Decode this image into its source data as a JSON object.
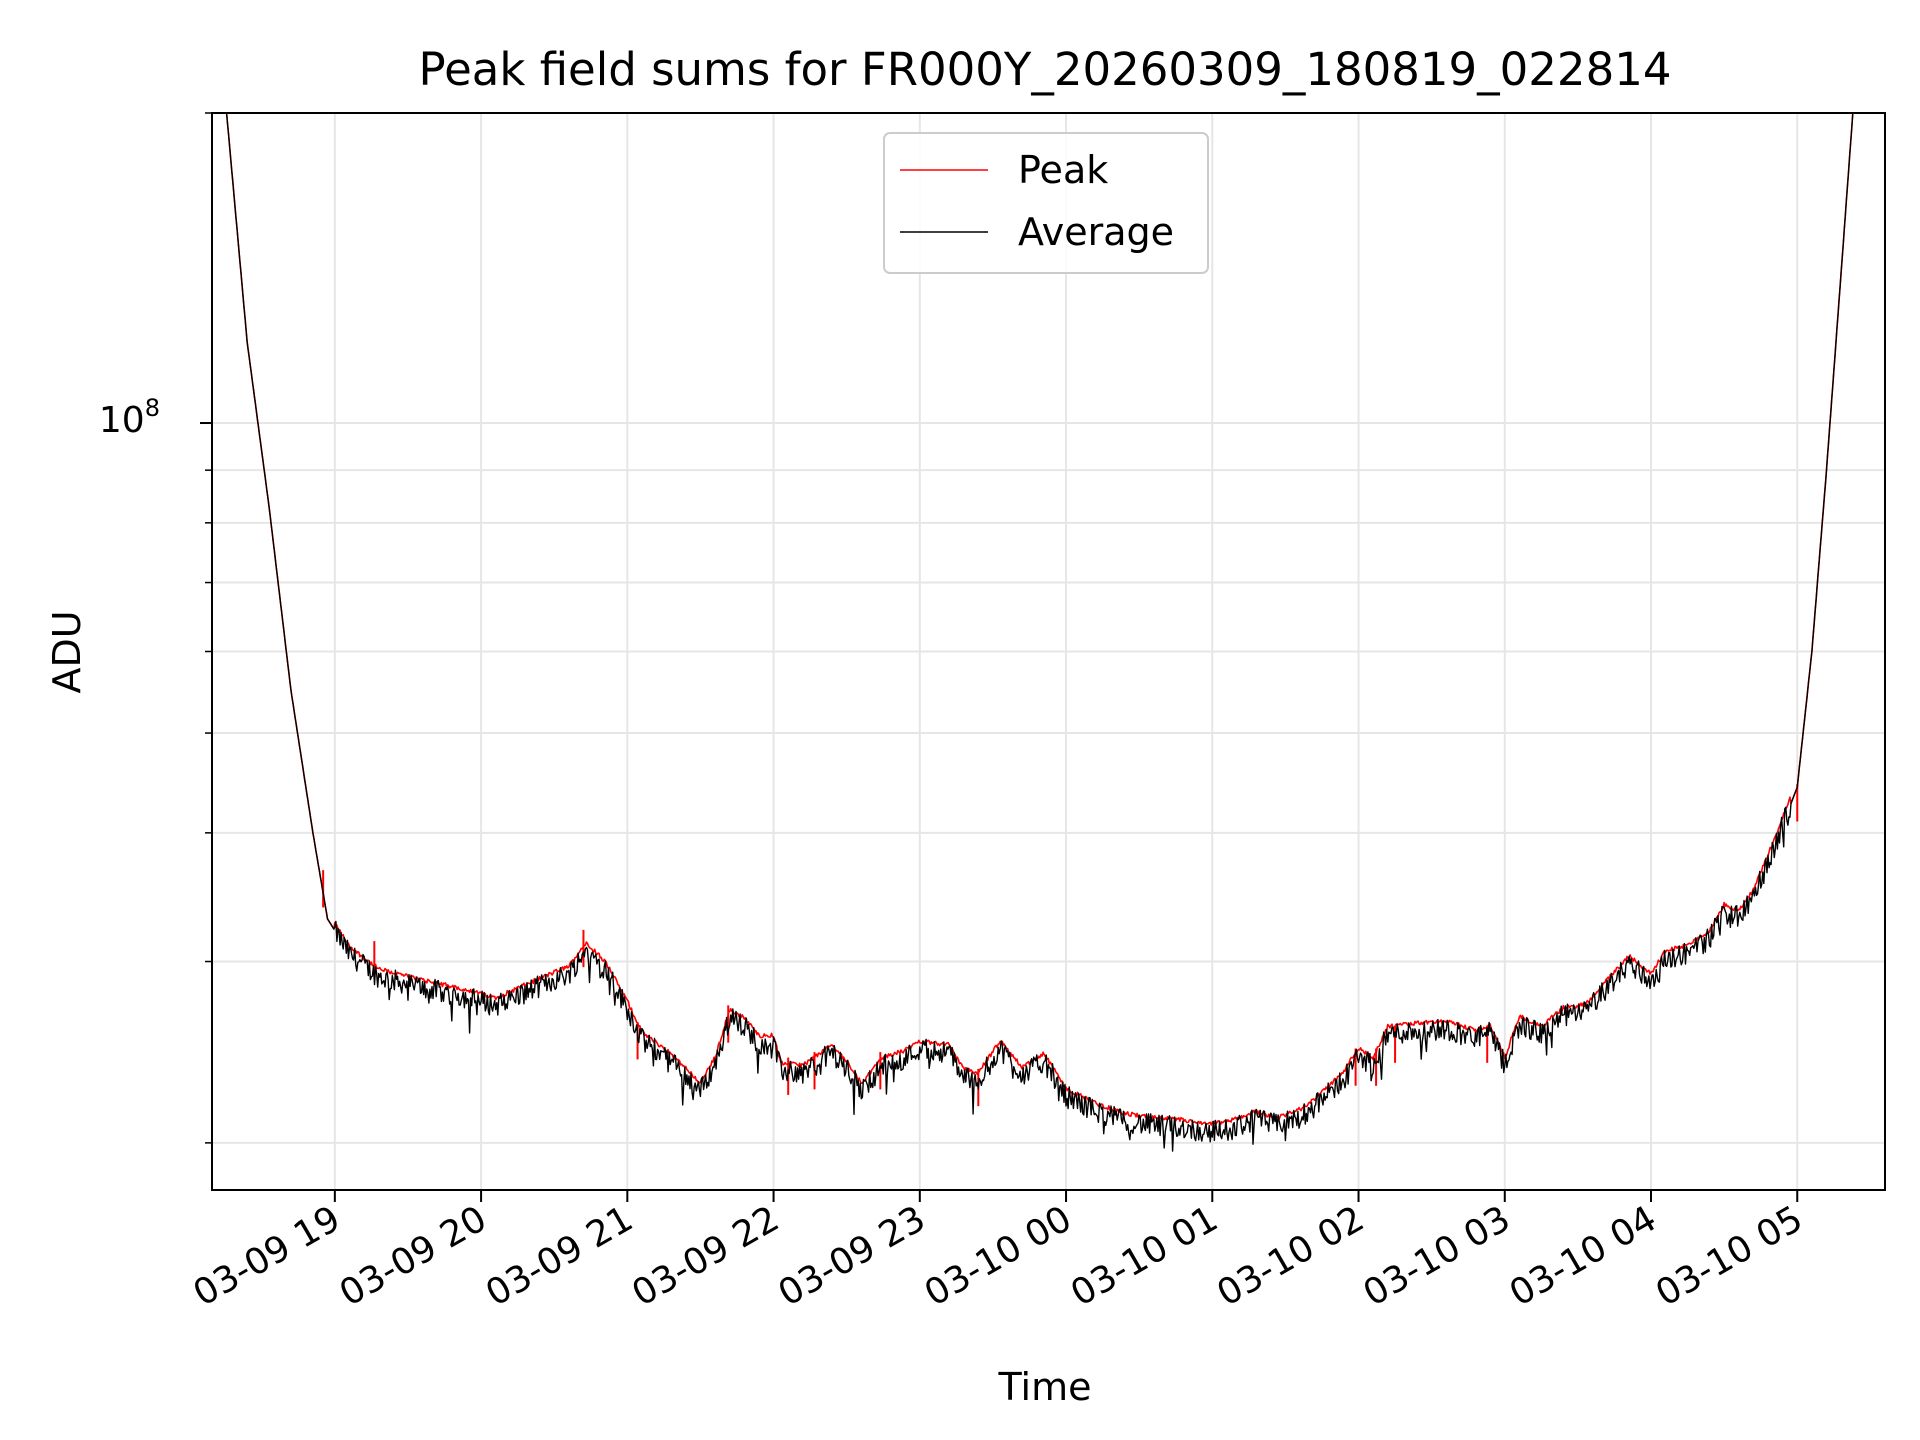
{
  "chart_data": {
    "type": "line",
    "title": "Peak field sums for FR000Y_20260309_180819_022814",
    "xlabel": "Time",
    "ylabel": "ADU",
    "yscale": "log",
    "ylim": [
      18000000,
      200000000
    ],
    "xlim": [
      18.16,
      29.6
    ],
    "y_tick_label": {
      "base": "10",
      "exp": "8",
      "value": 100000000
    },
    "x_ticks": [
      {
        "hour": 19,
        "label": "03-09 19"
      },
      {
        "hour": 20,
        "label": "03-09 20"
      },
      {
        "hour": 21,
        "label": "03-09 21"
      },
      {
        "hour": 22,
        "label": "03-09 22"
      },
      {
        "hour": 23,
        "label": "03-09 23"
      },
      {
        "hour": 24,
        "label": "03-10 00"
      },
      {
        "hour": 25,
        "label": "03-10 01"
      },
      {
        "hour": 26,
        "label": "03-10 02"
      },
      {
        "hour": 27,
        "label": "03-10 03"
      },
      {
        "hour": 28,
        "label": "03-10 04"
      },
      {
        "hour": 29,
        "label": "03-10 05"
      }
    ],
    "grid": true,
    "legend": {
      "position": "top-center",
      "entries": [
        "Peak",
        "Average"
      ]
    },
    "series": [
      {
        "name": "Peak",
        "color": "#ff0000"
      },
      {
        "name": "Average",
        "color": "#000000"
      }
    ],
    "average_anchor_points": [
      [
        18.26,
        200000000
      ],
      [
        18.4,
        120000000
      ],
      [
        18.55,
        83000000
      ],
      [
        18.7,
        55000000
      ],
      [
        18.85,
        40000000
      ],
      [
        18.95,
        33000000
      ],
      [
        19.1,
        30500000
      ],
      [
        19.3,
        29000000
      ],
      [
        19.6,
        28300000
      ],
      [
        19.9,
        27700000
      ],
      [
        20.1,
        27200000
      ],
      [
        20.4,
        28400000
      ],
      [
        20.6,
        29200000
      ],
      [
        20.72,
        30800000
      ],
      [
        20.85,
        29500000
      ],
      [
        21.0,
        27000000
      ],
      [
        21.1,
        25200000
      ],
      [
        21.3,
        24000000
      ],
      [
        21.5,
        22500000
      ],
      [
        21.6,
        23800000
      ],
      [
        21.7,
        26500000
      ],
      [
        21.8,
        26000000
      ],
      [
        21.9,
        25000000
      ],
      [
        22.0,
        25000000
      ],
      [
        22.05,
        23500000
      ],
      [
        22.2,
        23400000
      ],
      [
        22.4,
        24500000
      ],
      [
        22.5,
        23600000
      ],
      [
        22.6,
        22500000
      ],
      [
        22.75,
        23800000
      ],
      [
        22.9,
        24200000
      ],
      [
        23.0,
        24700000
      ],
      [
        23.2,
        24500000
      ],
      [
        23.3,
        23200000
      ],
      [
        23.4,
        23000000
      ],
      [
        23.55,
        24700000
      ],
      [
        23.7,
        23300000
      ],
      [
        23.85,
        24000000
      ],
      [
        24.0,
        22200000
      ],
      [
        24.2,
        21500000
      ],
      [
        24.4,
        21000000
      ],
      [
        24.6,
        20800000
      ],
      [
        24.8,
        20700000
      ],
      [
        24.95,
        20500000
      ],
      [
        25.1,
        20600000
      ],
      [
        25.3,
        21100000
      ],
      [
        25.45,
        20800000
      ],
      [
        25.6,
        21200000
      ],
      [
        25.75,
        22000000
      ],
      [
        25.9,
        23100000
      ],
      [
        26.0,
        24300000
      ],
      [
        26.1,
        23800000
      ],
      [
        26.2,
        25500000
      ],
      [
        26.4,
        25700000
      ],
      [
        26.6,
        25800000
      ],
      [
        26.8,
        25300000
      ],
      [
        26.9,
        25600000
      ],
      [
        27.0,
        23800000
      ],
      [
        27.1,
        26100000
      ],
      [
        27.25,
        25500000
      ],
      [
        27.4,
        26600000
      ],
      [
        27.55,
        26800000
      ],
      [
        27.7,
        28300000
      ],
      [
        27.85,
        29900000
      ],
      [
        28.0,
        28700000
      ],
      [
        28.1,
        30200000
      ],
      [
        28.25,
        30600000
      ],
      [
        28.4,
        31600000
      ],
      [
        28.5,
        33500000
      ],
      [
        28.6,
        33100000
      ],
      [
        28.7,
        34600000
      ],
      [
        28.85,
        39000000
      ],
      [
        29.0,
        44300000
      ],
      [
        29.1,
        60000000
      ],
      [
        29.2,
        90000000
      ],
      [
        29.3,
        140000000
      ],
      [
        29.38,
        200000000
      ]
    ],
    "peak_spikes": [
      [
        18.92,
        36800000
      ],
      [
        19.27,
        31400000
      ],
      [
        20.7,
        32200000
      ],
      [
        21.07,
        26200000
      ],
      [
        21.69,
        27200000
      ],
      [
        22.1,
        24200000
      ],
      [
        22.28,
        24500000
      ],
      [
        22.73,
        24500000
      ],
      [
        23.4,
        23600000
      ],
      [
        25.98,
        24700000
      ],
      [
        26.12,
        24700000
      ],
      [
        26.25,
        26000000
      ],
      [
        26.88,
        26000000
      ],
      [
        29.0,
        44600000
      ]
    ]
  }
}
